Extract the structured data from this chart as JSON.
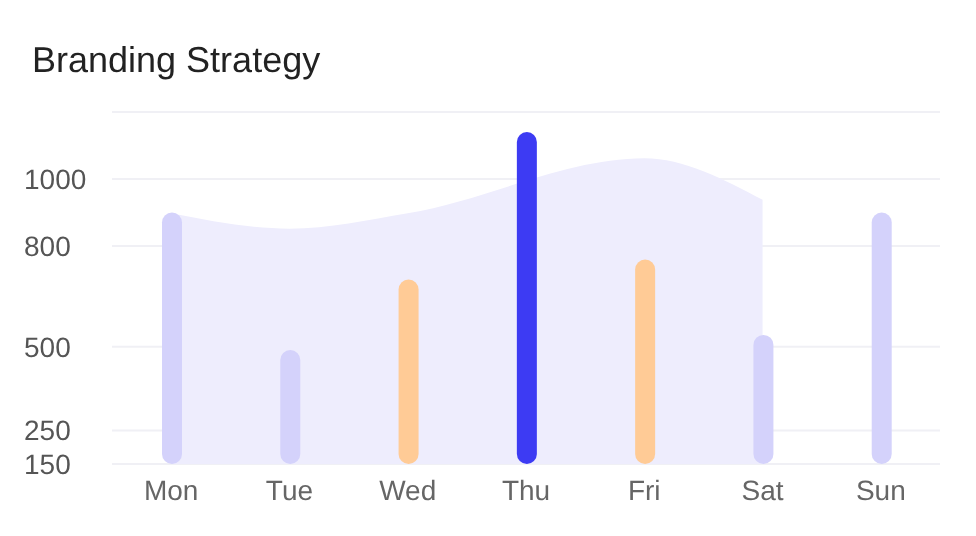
{
  "chart_data": {
    "type": "bar",
    "title": "Branding Strategy",
    "categories": [
      "Mon",
      "Tue",
      "Wed",
      "Thu",
      "Fri",
      "Sat",
      "Sun"
    ],
    "series": [
      {
        "type": "area",
        "color": "#eeedfd",
        "values": [
          898,
          852,
          898,
          null,
          1062,
          938,
          null
        ]
      },
      {
        "colors": [
          "#d4d2fb",
          "#d4d2fb",
          "#ffcb96",
          "#3d3bf3",
          "#ffcb96",
          "#d4d2fb",
          "#d4d2fb"
        ],
        "values": [
          900,
          490,
          700,
          1140,
          760,
          535,
          900
        ]
      }
    ],
    "ylim": [
      150,
      1200
    ],
    "yticks": [
      150,
      250,
      500,
      800,
      1000
    ],
    "grid": "y",
    "legend": false
  }
}
